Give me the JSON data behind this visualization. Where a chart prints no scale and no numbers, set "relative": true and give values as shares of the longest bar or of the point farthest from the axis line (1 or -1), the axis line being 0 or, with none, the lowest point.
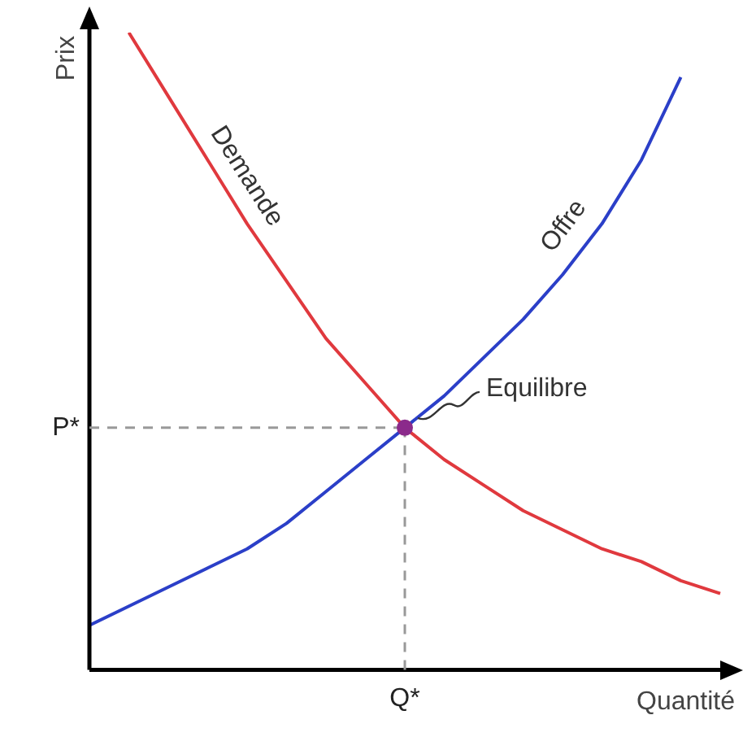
{
  "chart_data": {
    "type": "line",
    "relative": true,
    "xlabel": "Quantité",
    "ylabel": "Prix",
    "categories": [
      null,
      null,
      null,
      null,
      null,
      null,
      null,
      null,
      null,
      null,
      null,
      null,
      null,
      null,
      null,
      null,
      null
    ],
    "series": [
      {
        "name": "Demande",
        "color": "#e0393e",
        "values": [
          null,
          1.0,
          0.9,
          0.8,
          0.7,
          0.61,
          0.52,
          0.45,
          0.38,
          0.33,
          0.29,
          0.25,
          0.22,
          0.19,
          0.17,
          0.14,
          0.12
        ]
      },
      {
        "name": "Offre",
        "color": "#2b3fc8",
        "values": [
          0.07,
          0.1,
          0.13,
          0.16,
          0.19,
          0.23,
          0.28,
          0.33,
          0.38,
          0.43,
          0.49,
          0.55,
          0.62,
          0.7,
          0.8,
          0.93,
          null
        ]
      }
    ],
    "ref_lines": [
      {
        "axis": "y",
        "value": 0.38,
        "label": "P*",
        "color": "#999999",
        "line_style": "dashed"
      }
    ],
    "annotations": [
      "Equilibre",
      "Q*"
    ],
    "legend": false,
    "grid": false,
    "tick_labels": "x"
  }
}
